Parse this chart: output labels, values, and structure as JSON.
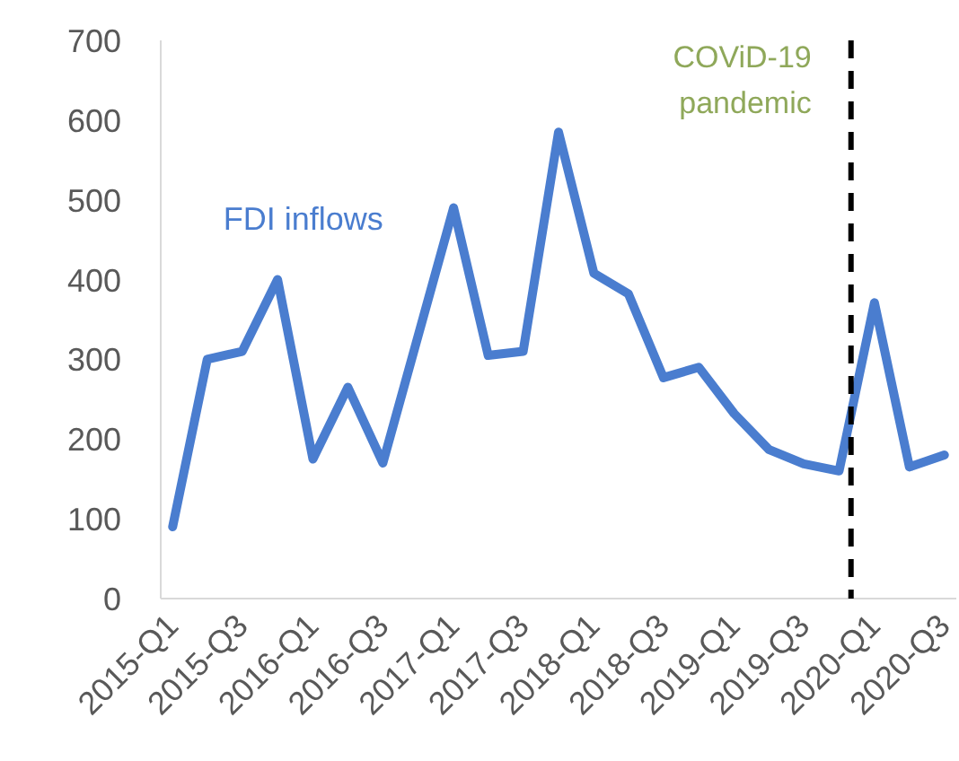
{
  "chart_data": {
    "type": "line",
    "x": [
      "2015-01",
      "2015-04",
      "2015-07",
      "2015-10",
      "2016-01",
      "2016-04",
      "2016-07",
      "2016-10",
      "2017-01",
      "2017-04",
      "2017-07",
      "2017-10",
      "2018-01",
      "2018-04",
      "2018-07",
      "2018-10",
      "2019-01",
      "2019-04",
      "2019-07",
      "2019-10",
      "2020-01",
      "2020-04",
      "2020-07"
    ],
    "series": [
      {
        "name": "FDI inflows",
        "color": "#4a7dcf",
        "values": [
          90,
          300,
          310,
          400,
          175,
          265,
          170,
          330,
          490,
          305,
          310,
          585,
          408,
          382,
          277,
          290,
          232,
          187,
          169,
          160,
          371,
          165,
          180
        ]
      }
    ],
    "xlim": [
      "2014-12",
      "2020-08"
    ],
    "xticks": [
      {
        "value": "2015-01",
        "label": "2015-Q1"
      },
      {
        "value": "2015-07",
        "label": "2015-Q3"
      },
      {
        "value": "2016-01",
        "label": "2016-Q1"
      },
      {
        "value": "2016-07",
        "label": "2016-Q3"
      },
      {
        "value": "2017-01",
        "label": "2017-Q1"
      },
      {
        "value": "2017-07",
        "label": "2017-Q3"
      },
      {
        "value": "2018-01",
        "label": "2018-Q1"
      },
      {
        "value": "2018-07",
        "label": "2018-Q3"
      },
      {
        "value": "2019-01",
        "label": "2019-Q1"
      },
      {
        "value": "2019-07",
        "label": "2019-Q3"
      },
      {
        "value": "2020-01",
        "label": "2020-Q1"
      },
      {
        "value": "2020-07",
        "label": "2020-Q3"
      }
    ],
    "ylim": [
      0,
      700
    ],
    "yticks": [
      0,
      100,
      200,
      300,
      400,
      500,
      600,
      700
    ],
    "ref_lines": [
      {
        "axis": "x",
        "value": "2019-11",
        "label": "COViD-19 pandemic",
        "color": "#000000",
        "line_style": "dashed"
      }
    ],
    "grid": false
  }
}
